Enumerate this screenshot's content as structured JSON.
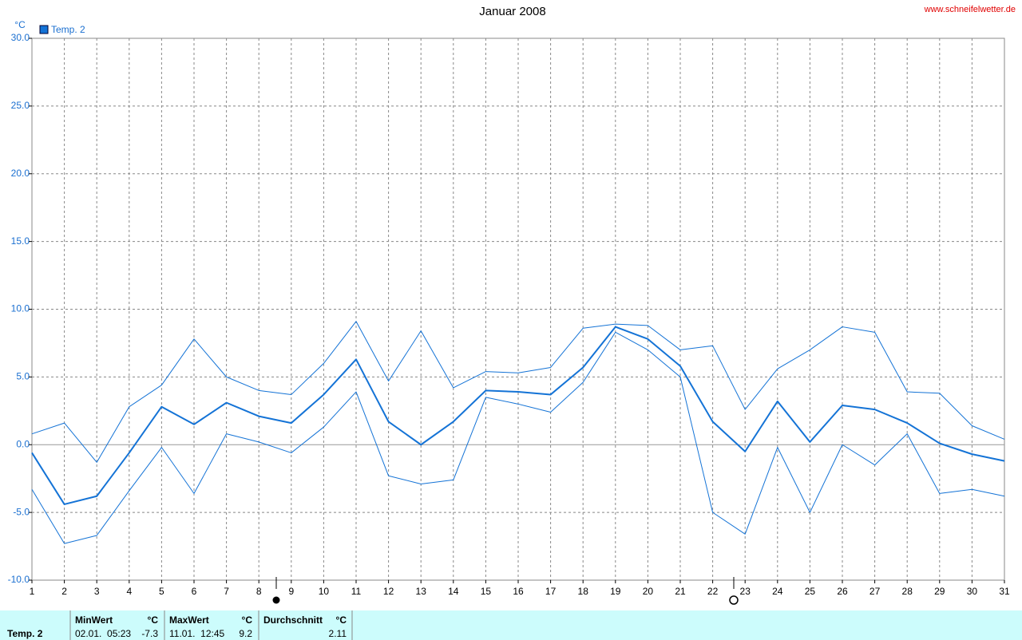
{
  "chart_data": {
    "type": "line",
    "title": "Januar 2008",
    "source": "www.schneifelwetter.de",
    "y_label": "°C",
    "x": [
      1,
      2,
      3,
      4,
      5,
      6,
      7,
      8,
      9,
      10,
      11,
      12,
      13,
      14,
      15,
      16,
      17,
      18,
      19,
      20,
      21,
      22,
      23,
      24,
      25,
      26,
      27,
      28,
      29,
      30,
      31
    ],
    "series": [
      {
        "name": "Temp. 2",
        "color": "#1473d6",
        "width": 2,
        "values": [
          -0.6,
          -4.4,
          -3.8,
          -0.6,
          2.8,
          1.5,
          3.1,
          2.1,
          1.6,
          3.7,
          6.3,
          1.7,
          0.0,
          1.7,
          4.0,
          3.9,
          3.7,
          5.7,
          8.7,
          7.8,
          5.8,
          1.7,
          -0.5,
          3.2,
          0.2,
          2.9,
          2.6,
          1.6,
          0.1,
          -0.7,
          -1.2
        ]
      },
      {
        "color": "#1473d6",
        "width": 1,
        "values": [
          0.8,
          1.6,
          -1.3,
          2.8,
          4.4,
          7.8,
          5.0,
          4.0,
          3.7,
          6.0,
          9.1,
          4.7,
          8.4,
          4.2,
          5.4,
          5.3,
          5.7,
          8.6,
          8.9,
          8.8,
          7.0,
          7.3,
          2.6,
          5.6,
          7.0,
          8.7,
          8.3,
          3.9,
          3.8,
          1.4,
          0.4
        ]
      },
      {
        "color": "#1473d6",
        "width": 1,
        "values": [
          -3.3,
          -7.3,
          -6.7,
          -3.4,
          -0.2,
          -3.6,
          0.8,
          0.2,
          -0.6,
          1.3,
          3.9,
          -2.3,
          -2.9,
          -2.6,
          3.5,
          3.0,
          2.4,
          4.6,
          8.3,
          7.0,
          5.0,
          -5.0,
          -6.6,
          -0.2,
          -5.0,
          0.0,
          -1.5,
          0.8,
          -3.6,
          -3.3,
          -3.8
        ]
      }
    ],
    "xlim": [
      1,
      31
    ],
    "xticks": [
      1,
      2,
      3,
      4,
      5,
      6,
      7,
      8,
      9,
      10,
      11,
      12,
      13,
      14,
      15,
      16,
      17,
      18,
      19,
      20,
      21,
      22,
      23,
      24,
      25,
      26,
      27,
      28,
      29,
      30,
      31
    ],
    "ylim": [
      -10,
      30
    ],
    "yticks": [
      {
        "value": -10,
        "label": "-10.0"
      },
      {
        "value": -5,
        "label": "-5.0"
      },
      {
        "value": 0,
        "label": "0.0"
      },
      {
        "value": 5,
        "label": "5.0"
      },
      {
        "value": 10,
        "label": "10.0"
      },
      {
        "value": 15,
        "label": "15.0"
      },
      {
        "value": 20,
        "label": "20.0"
      },
      {
        "value": 25,
        "label": "25.0"
      },
      {
        "value": 30,
        "label": "30.0"
      }
    ],
    "grid": true,
    "legend": "top-left"
  },
  "summary": {
    "name": "Temp. 2",
    "min": {
      "label": "MinWert",
      "unit": "°C",
      "time": "02.01.  05:23",
      "value": "-7.3"
    },
    "max": {
      "label": "MaxWert",
      "unit": "°C",
      "time": "11.01.  12:45",
      "value": "9.2"
    },
    "avg": {
      "label": "Durchschnitt",
      "unit": "°C",
      "value": "2.11"
    }
  }
}
